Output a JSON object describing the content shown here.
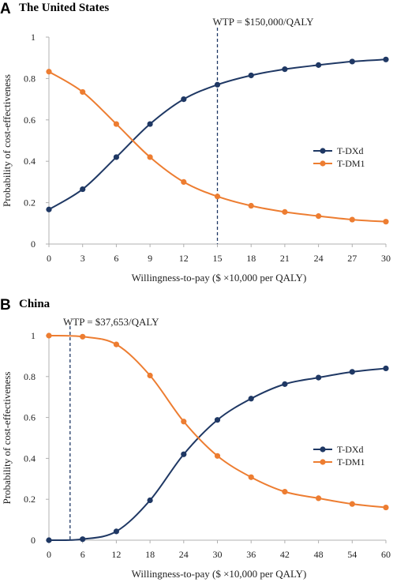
{
  "colors": {
    "dxd": "#1f3864",
    "dm1": "#ed7d31",
    "axis": "#b0b0b0",
    "wtp": "#1f3864"
  },
  "chart_data": [
    {
      "panel": "A",
      "title": "The United States",
      "type": "line",
      "xlabel": "Willingness-to-pay ($ ×10,000 per QALY)",
      "ylabel": "Probability of cost-effectiveness",
      "x": [
        0,
        3,
        6,
        9,
        12,
        15,
        18,
        21,
        24,
        27,
        30
      ],
      "xlim": [
        0,
        30
      ],
      "ylim": [
        0,
        1
      ],
      "xticks": [
        0,
        3,
        6,
        9,
        12,
        15,
        18,
        21,
        24,
        27,
        30
      ],
      "yticks": [
        0,
        0.2,
        0.4,
        0.6,
        0.8,
        1
      ],
      "ytick_labels": [
        "0",
        "0.2",
        "0.4",
        "0.6",
        "0.8",
        "1"
      ],
      "series": [
        {
          "name": "T-DXd",
          "color": "#1f3864",
          "values": [
            0.167,
            0.265,
            0.42,
            0.58,
            0.7,
            0.77,
            0.815,
            0.845,
            0.865,
            0.882,
            0.892
          ]
        },
        {
          "name": "T-DM1",
          "color": "#ed7d31",
          "values": [
            0.833,
            0.735,
            0.58,
            0.42,
            0.3,
            0.23,
            0.185,
            0.155,
            0.135,
            0.118,
            0.108
          ]
        }
      ],
      "threshold": {
        "x": 15,
        "label": "WTP = $150,000/QALY"
      },
      "legend": "right"
    },
    {
      "panel": "B",
      "title": "China",
      "type": "line",
      "xlabel": "Willingness-to-pay ($ ×10,000 per QALY)",
      "ylabel": "Probability of cost-effectiveness",
      "x": [
        0,
        6,
        12,
        18,
        24,
        30,
        36,
        42,
        48,
        54,
        60
      ],
      "xlim": [
        0,
        60
      ],
      "ylim": [
        0,
        1
      ],
      "xticks": [
        0,
        6,
        12,
        18,
        24,
        30,
        36,
        42,
        48,
        54,
        60
      ],
      "yticks": [
        0,
        0.2,
        0.4,
        0.6,
        0.8,
        1
      ],
      "ytick_labels": [
        "0",
        "0.2",
        "0.4",
        "0.6",
        "0.8",
        "1"
      ],
      "series": [
        {
          "name": "T-DXd",
          "color": "#1f3864",
          "values": [
            0.0,
            0.005,
            0.043,
            0.195,
            0.42,
            0.588,
            0.692,
            0.763,
            0.795,
            0.823,
            0.84
          ]
        },
        {
          "name": "T-DM1",
          "color": "#ed7d31",
          "values": [
            1.0,
            0.995,
            0.957,
            0.805,
            0.58,
            0.412,
            0.308,
            0.237,
            0.205,
            0.177,
            0.16
          ]
        }
      ],
      "threshold": {
        "x": 3.7653,
        "label": "WTP = $37,653/QALY"
      },
      "legend": "right"
    }
  ]
}
